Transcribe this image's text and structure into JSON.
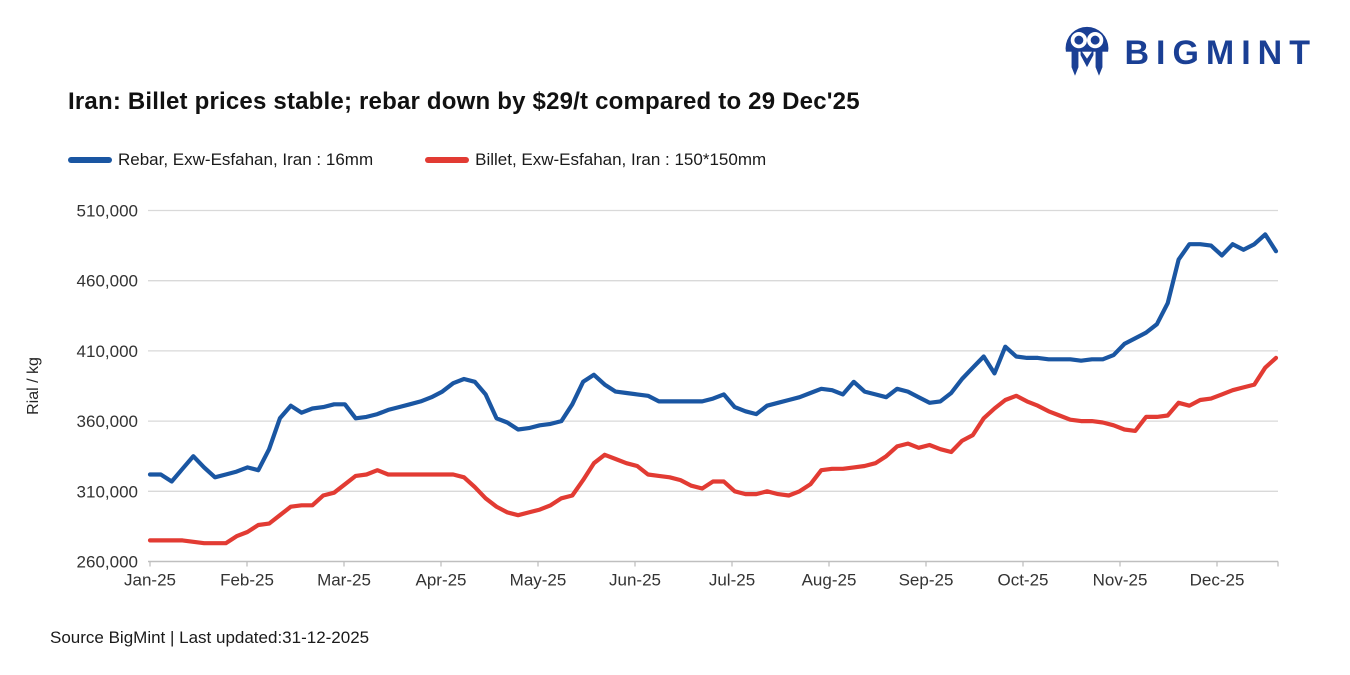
{
  "logo": {
    "text": "BIGMINT",
    "color": "#1A3F94"
  },
  "title": "Iran: Billet prices stable; rebar down by $29/t compared to 29 Dec'25",
  "footer": {
    "text": "Source BigMint | Last updated:31-12-2025"
  },
  "chart_data": {
    "type": "line",
    "title": "Iran: Billet prices stable; rebar down by $29/t compared to 29 Dec'25",
    "xlabel": "",
    "ylabel": "Rial / kg",
    "ylim": [
      260000,
      510000
    ],
    "y_ticks": [
      260000,
      310000,
      360000,
      410000,
      460000,
      510000
    ],
    "categories": [
      "Jan-25",
      "Feb-25",
      "Mar-25",
      "Apr-25",
      "May-25",
      "Jun-25",
      "Jul-25",
      "Aug-25",
      "Sep-25",
      "Oct-25",
      "Nov-25",
      "Dec-25"
    ],
    "grid": true,
    "legend_position": "top-left",
    "colors": {
      "grid": "#d9d9d9",
      "axis": "#bfbfbf",
      "tick_text": "#333333"
    },
    "frequency": "twice-weekly, Jan 2025 to 31 Dec 2025",
    "series": [
      {
        "name": "Rebar, Exw-Esfahan, Iran : 16mm",
        "color": "#1A56A2",
        "values": [
          322000,
          322000,
          317000,
          326000,
          335000,
          327000,
          320000,
          322000,
          324000,
          327000,
          325000,
          340000,
          362000,
          371000,
          366000,
          369000,
          370000,
          372000,
          372000,
          362000,
          363000,
          365000,
          368000,
          370000,
          372000,
          374000,
          377000,
          381000,
          387000,
          390000,
          388000,
          379000,
          362000,
          359000,
          354000,
          355000,
          357000,
          358000,
          360000,
          372000,
          388000,
          393000,
          386000,
          381000,
          380000,
          379000,
          378000,
          374000,
          374000,
          374000,
          374000,
          374000,
          376000,
          379000,
          370000,
          367000,
          365000,
          371000,
          373000,
          375000,
          377000,
          380000,
          383000,
          382000,
          379000,
          388000,
          381000,
          379000,
          377000,
          383000,
          381000,
          377000,
          373000,
          374000,
          380000,
          390000,
          398000,
          406000,
          394000,
          413000,
          406000,
          405000,
          405000,
          404000,
          404000,
          404000,
          403000,
          404000,
          404000,
          407000,
          415000,
          419000,
          423000,
          429000,
          444000,
          475000,
          486000,
          486000,
          485000,
          478000,
          486000,
          482000,
          486000,
          493000,
          481000
        ]
      },
      {
        "name": "Billet, Exw-Esfahan, Iran : 150*150mm",
        "color": "#E23B33",
        "values": [
          275000,
          275000,
          275000,
          275000,
          274000,
          273000,
          273000,
          273000,
          278000,
          281000,
          286000,
          287000,
          293000,
          299000,
          300000,
          300000,
          307000,
          309000,
          315000,
          321000,
          322000,
          325000,
          322000,
          322000,
          322000,
          322000,
          322000,
          322000,
          322000,
          320000,
          313000,
          305000,
          299000,
          295000,
          293000,
          295000,
          297000,
          300000,
          305000,
          307000,
          318000,
          330000,
          336000,
          333000,
          330000,
          328000,
          322000,
          321000,
          320000,
          318000,
          314000,
          312000,
          317000,
          317000,
          310000,
          308000,
          308000,
          310000,
          308000,
          307000,
          310000,
          315000,
          325000,
          326000,
          326000,
          327000,
          328000,
          330000,
          335000,
          342000,
          344000,
          341000,
          343000,
          340000,
          338000,
          346000,
          350000,
          362000,
          369000,
          375000,
          378000,
          374000,
          371000,
          367000,
          364000,
          361000,
          360000,
          360000,
          359000,
          357000,
          354000,
          353000,
          363000,
          363000,
          364000,
          373000,
          371000,
          375000,
          376000,
          379000,
          382000,
          384000,
          386000,
          398000,
          405000
        ]
      }
    ]
  }
}
